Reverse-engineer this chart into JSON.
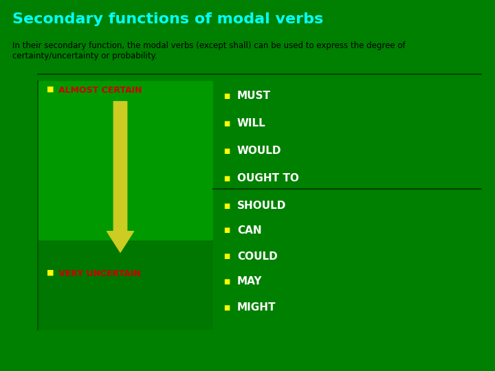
{
  "title": "Secondary functions of modal verbs",
  "title_color": "#00FFFF",
  "title_fontsize": 16,
  "bg_color": "#008000",
  "subtitle_line1": "In their secondary function, the modal verbs (except shall) can be used to express the degree of",
  "subtitle_line2": "certainty/uncertainty or probability.",
  "subtitle_color": "#000000",
  "subtitle_fontsize": 8.5,
  "almost_certain_label": "ALMOST CERTAIN",
  "very_uncertain_label": "VERY UNCERTAIN",
  "label_color": "#CC0000",
  "label_fontsize": 9,
  "bullet_color": "#FFFF00",
  "items": [
    "MUST",
    "WILL",
    "WOULD",
    "OUGHT TO",
    "SHOULD",
    "CAN",
    "COULD",
    "MAY",
    "MIGHT"
  ],
  "items_color": "#FFFFFF",
  "items_fontsize": 11,
  "arrow_color": "#CCCC22",
  "upper_box_color": "#009900",
  "lower_box_color": "#006600",
  "panel_bg_color": "#009900",
  "divider_line_color": "#005500"
}
